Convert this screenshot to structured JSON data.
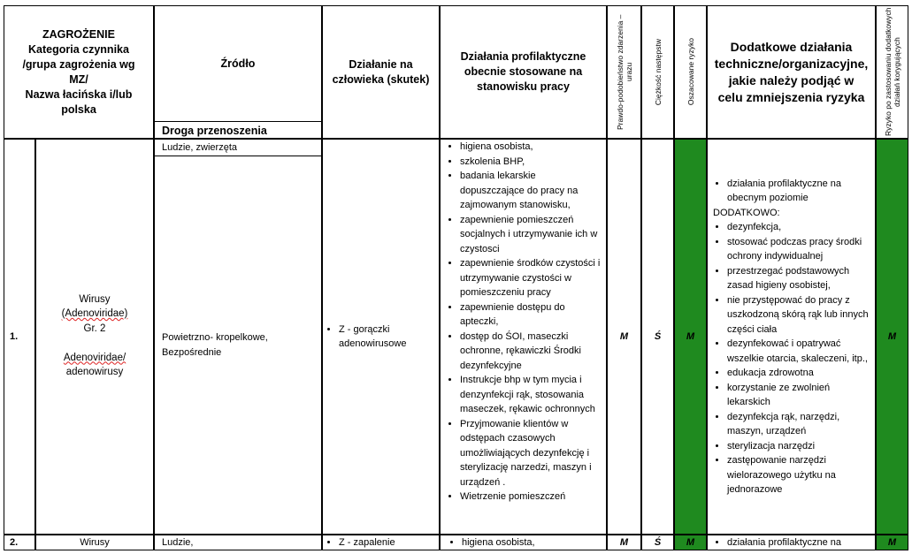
{
  "header": {
    "hazard": [
      "ZAGROŻENIE",
      "Kategoria czynnika",
      "/grupa zagrożenia wg",
      "MZ/",
      "Nazwa łacińska i/lub",
      "polska"
    ],
    "source": "Źródło",
    "transmission_route": "Droga przenoszenia",
    "effect": "Działanie na człowieka (skutek)",
    "current_measures": "Działania profilaktyczne obecnie stosowane na stanowisku pracy",
    "probability": "Prawdo-podobieństwo zdarzenia – urazu",
    "severity": "Ciężkość następstw",
    "estimated_risk": "Oszacowane ryzyko",
    "additional_measures": "Dodatkowe działania techniczne/organizacyjne, jakie należy podjąć w celu zmniejszenia ryzyka",
    "residual_risk": "Ryzyko po zastosowaniu dodatkowych działań korygujących"
  },
  "colors": {
    "risk_low": "#1f8a1f"
  },
  "rows": [
    {
      "number": "1.",
      "hazard": [
        "Wirusy",
        "(Adenoviridae)",
        "Gr. 2",
        "",
        "Adenoviridae/",
        "adenowirusy"
      ],
      "source": "Ludzie, zwierzęta",
      "route": "Powietrzno- kropelkowe, Bezpośrednie",
      "effect": "Z - gorączki adenowirusowe",
      "current_measures": [
        "higiena osobista,",
        "szkolenia BHP,",
        "badania lekarskie dopuszczające do pracy na zajmowanym stanowisku,",
        "zapewnienie pomieszczeń socjalnych i utrzymywanie ich w czystosci",
        "zapewnienie środków czystości i utrzymywanie czystości w pomieszczeniu pracy",
        "zapewnienie dostępu do apteczki,",
        "dostęp do ŚOI, maseczki ochronne, rękawiczki Środki dezynfekcyjne",
        "Instrukcje bhp w tym mycia i denzynfekcji rąk, stosowania maseczek, rękawic ochronnych",
        "Przyjmowanie klientów w odstępach czasowych umożliwiających dezynfekcję i sterylizację narzedzi, maszyn i urządzeń .",
        "Wietrzenie pomieszczeń"
      ],
      "probability": "M",
      "severity": "Ś",
      "estimated_risk": "M",
      "additional_first": "działania profilaktyczne na obecnym poziomie",
      "additional_label": "DODATKOWO:",
      "additional_measures": [
        "dezynfekcja,",
        "stosować podczas pracy środki ochrony indywidualnej",
        "przestrzegać podstawowych zasad higieny osobistej,",
        "nie przystępować do pracy z uszkodzoną skórą rąk lub innych części ciała",
        "dezynfekować i opatrywać wszelkie otarcia, skaleczeni, itp.,",
        "edukacja zdrowotna",
        "korzystanie ze zwolnień lekarskich",
        "dezynfekcja rąk, narzędzi, maszyn, urządzeń",
        "sterylizacja narzędzi",
        "zastępowanie narzędzi wielorazowego użytku na jednorazowe"
      ],
      "residual_risk": "M"
    },
    {
      "number": "2.",
      "hazard": "Wirusy",
      "source": "Ludzie,",
      "effect": "Z - zapalenie",
      "current_first": "higiena osobista,",
      "probability": "M",
      "severity": "Ś",
      "estimated_risk": "M",
      "additional_first": "działania profilaktyczne na",
      "residual_risk": "M"
    }
  ]
}
